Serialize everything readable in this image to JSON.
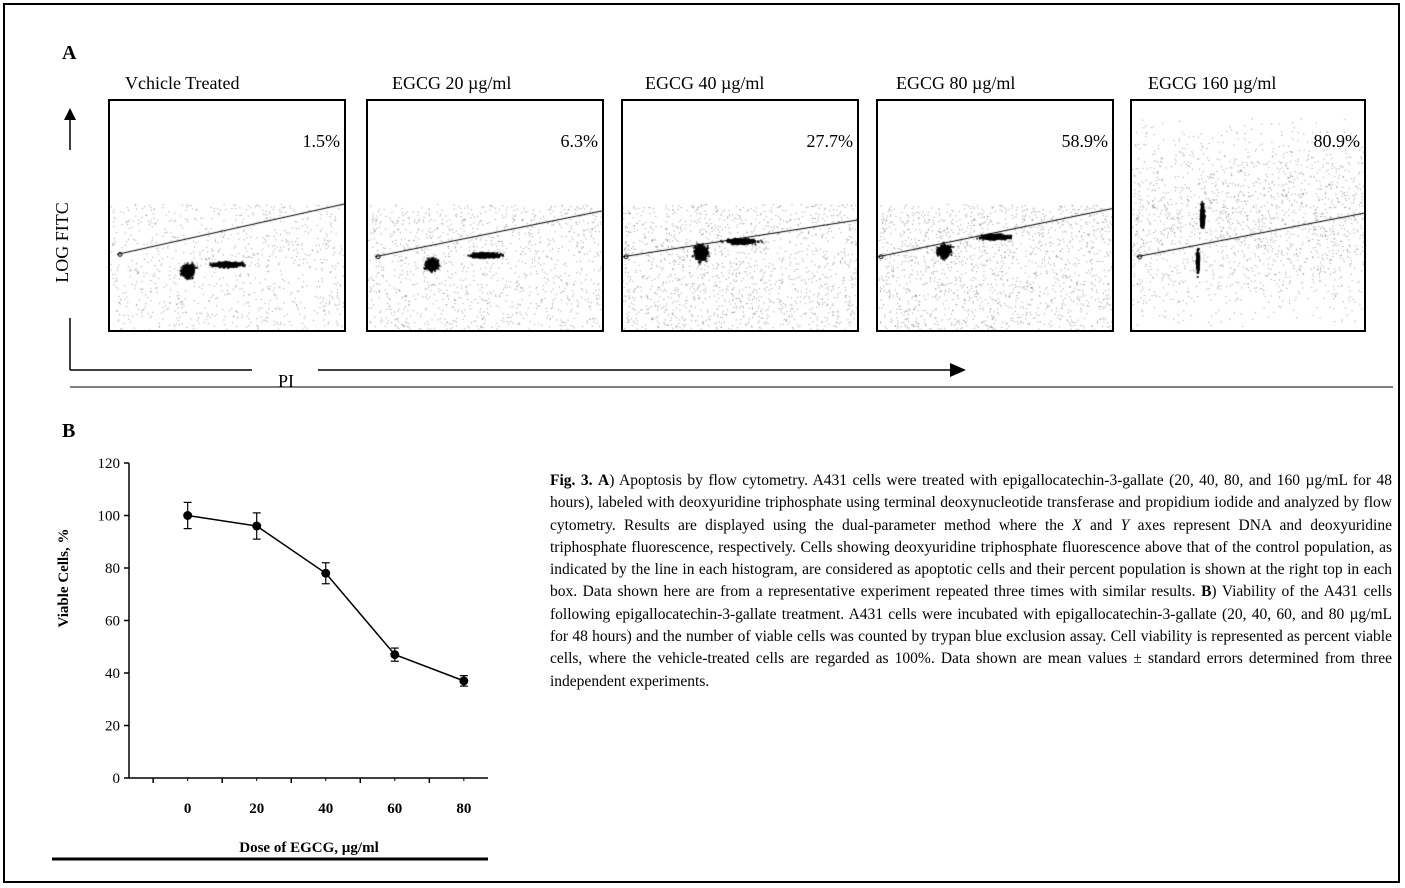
{
  "panel_a": {
    "label": "A",
    "plots": [
      {
        "title": "Vchicle Treated",
        "percent": "1.5%"
      },
      {
        "title": "EGCG 20 µg/ml",
        "percent": "6.3%"
      },
      {
        "title": "EGCG 40 µg/ml",
        "percent": "27.7%"
      },
      {
        "title": "EGCG 80 µg/ml",
        "percent": "58.9%"
      },
      {
        "title": "EGCG 160 µg/ml",
        "percent": "80.9%"
      }
    ],
    "y_axis_label": "LOG FITC",
    "x_axis_label": "PI"
  },
  "panel_b": {
    "label": "B"
  },
  "chart_data": {
    "type": "line",
    "title": "",
    "xlabel": "Dose of EGCG, µg/ml",
    "ylabel": "Viable Cells, %",
    "x": [
      0,
      20,
      40,
      60,
      80
    ],
    "series": [
      {
        "values": [
          100,
          96,
          78,
          47,
          37
        ],
        "errors": [
          5,
          5,
          4,
          2.5,
          2
        ]
      }
    ],
    "xlim": [
      -17,
      87
    ],
    "ylim": [
      0,
      120
    ],
    "x_ticks": [
      0,
      20,
      40,
      60,
      80
    ],
    "y_ticks": [
      0,
      20,
      40,
      60,
      80,
      100,
      120
    ],
    "grid": false,
    "marker_color": "#000000"
  },
  "caption": {
    "fig_label": "Fig. 3.",
    "a_letter": "A",
    "part1": ") Apoptosis by flow cytometry. A431 cells were treated with epigallocatechin-3-gallate (20, 40, 80, and 160 µg/mL for 48 hours), labeled with deoxyuridine triphosphate using terminal deoxynucleotide transferase and propidium iodide and analyzed by flow cytometry. Results are displayed using the dual-parameter method where the ",
    "x_italic": "X",
    "and_word": " and ",
    "y_italic": "Y",
    "part2": " axes represent DNA and deoxyuridine triphosphate fluorescence, respectively. Cells showing deoxyuridine triphosphate fluorescence above that of the control population, as indicated by the line in each histogram, are considered as apoptotic cells and their percent population is shown at the right top in each box. Data shown here are from a representative experiment repeated three times with similar results. ",
    "b_letter": "B",
    "part3": ") Viability of the A431 cells following epigallocatechin-3-gallate treatment. A431 cells were incubated with epigallocatechin-3-gallate (20, 40, 60, and 80 µg/mL for 48 hours) and the number of viable cells was counted by trypan blue exclusion assay. Cell viability is represented as percent viable cells, where the vehicle-treated cells are regarded as 100%. Data shown are mean values ± standard errors determined from three independent experiments."
  }
}
